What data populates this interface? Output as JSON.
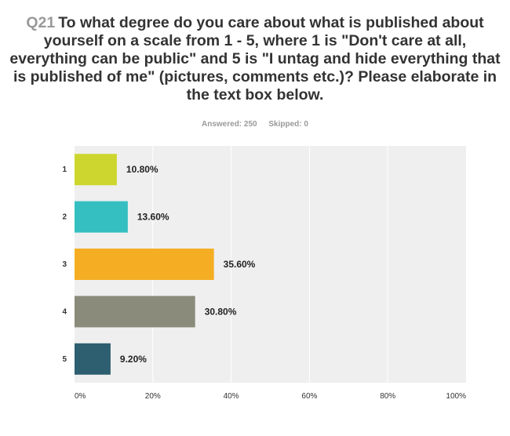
{
  "question": {
    "number": "Q21",
    "text": "To what degree do you care about what is published about yourself on a scale from 1 - 5, where 1 is \"Don't care at all, everything can be public\" and 5 is \"I untag and hide everything that is published of me\" (pictures, comments etc.)? Please elaborate in the text box below."
  },
  "stats": {
    "answered": "Answered: 250",
    "skipped": "Skipped: 0"
  },
  "chart_data": {
    "type": "bar",
    "orientation": "horizontal",
    "categories": [
      "1",
      "2",
      "3",
      "4",
      "5"
    ],
    "values": [
      10.8,
      13.6,
      35.6,
      30.8,
      9.2
    ],
    "value_labels": [
      "10.80%",
      "13.60%",
      "35.60%",
      "30.80%",
      "9.20%"
    ],
    "colors": [
      "#cdd62e",
      "#35bfc1",
      "#f5ae23",
      "#8a8b7a",
      "#2d5f70"
    ],
    "xlim": [
      0,
      100
    ],
    "x_ticks": [
      0,
      20,
      40,
      60,
      80,
      100
    ],
    "x_tick_labels": [
      "0%",
      "20%",
      "40%",
      "60%",
      "80%",
      "100%"
    ],
    "plot_background": "#efefef",
    "gridline_color": "#ffffff",
    "grid": true,
    "legend": "none"
  }
}
